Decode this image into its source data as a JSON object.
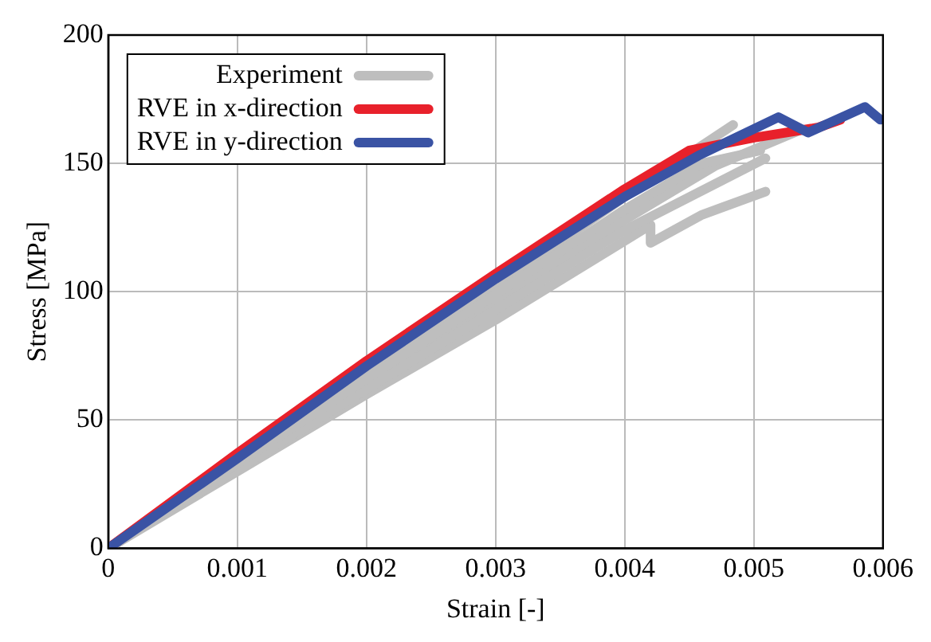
{
  "chart_data": {
    "type": "line",
    "xlabel": "Strain [-]",
    "ylabel": "Stress [MPa]",
    "xlim": [
      0,
      0.006
    ],
    "xticks": [
      0,
      0.001,
      0.002,
      0.003,
      0.004,
      0.005,
      0.006
    ],
    "ylim": [
      0,
      200
    ],
    "yticks": [
      0,
      50,
      100,
      150,
      200
    ],
    "grid": true,
    "legend": "top left",
    "series": [
      {
        "name": "Experiment",
        "color": "#bebebe",
        "x": [
          0,
          0.001,
          0.002,
          0.003,
          0.004,
          0.00484
        ],
        "values": [
          0,
          34,
          68,
          102,
          137,
          165
        ]
      },
      {
        "color": "#bebebe",
        "x": [
          0,
          0.001,
          0.002,
          0.003,
          0.0042,
          0.0042,
          0.0046,
          0.00509
        ],
        "values": [
          0,
          30,
          60,
          89,
          126,
          119,
          130,
          139
        ]
      },
      {
        "color": "#bebebe",
        "x": [
          0,
          0.001,
          0.002,
          0.003,
          0.004,
          0.0047,
          0.00536
        ],
        "values": [
          0,
          32,
          64,
          96,
          128,
          149,
          163
        ]
      },
      {
        "color": "#bebebe",
        "x": [
          0,
          0.001,
          0.002,
          0.003,
          0.004,
          0.00509
        ],
        "values": [
          0,
          31,
          62,
          93,
          124,
          152
        ]
      },
      {
        "color": "#bebebe",
        "x": [
          0,
          0.001,
          0.002,
          0.003,
          0.004,
          0.0046,
          0.00505
        ],
        "values": [
          0,
          33,
          66,
          99,
          132,
          150,
          155
        ]
      },
      {
        "name": "RVE in x-direction",
        "color": "#e8212b",
        "x": [
          0,
          0.001,
          0.002,
          0.003,
          0.004,
          0.0045,
          0.005,
          0.0055,
          0.00567
        ],
        "values": [
          0,
          37,
          73,
          107,
          140,
          155,
          160,
          164,
          167
        ]
      },
      {
        "name": "RVE in y-direction",
        "color": "#3a53a4",
        "x": [
          0,
          0.001,
          0.002,
          0.003,
          0.004,
          0.00457,
          0.00519,
          0.00542,
          0.00586,
          0.00598
        ],
        "values": [
          0,
          35,
          71,
          105,
          137,
          153,
          168,
          162,
          172,
          167
        ]
      }
    ]
  }
}
